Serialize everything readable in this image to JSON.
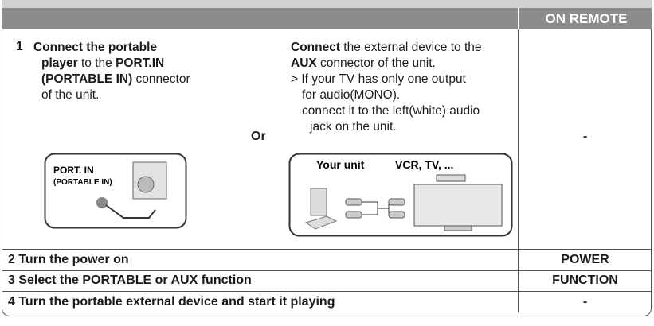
{
  "table": {
    "header": {
      "remote": "ON REMOTE"
    },
    "step1": {
      "number": "1",
      "portable_lines": [
        [
          {
            "text": "Connect the portable",
            "bold": true
          }
        ],
        [
          {
            "text": "player",
            "bold": true
          },
          {
            "text": " to the ",
            "bold": false
          },
          {
            "text": "PORT.IN",
            "bold": true
          }
        ],
        [
          {
            "text": "(PORTABLE IN)",
            "bold": true
          },
          {
            "text": " connector",
            "bold": false
          }
        ],
        [
          {
            "text": "of the unit.",
            "bold": false
          }
        ]
      ],
      "or": "Or",
      "aux_lines": [
        [
          {
            "text": "Connect",
            "bold": true
          },
          {
            "text": " the external device to the",
            "bold": false
          }
        ],
        [
          {
            "text": "AUX",
            "bold": true
          },
          {
            "text": " connector of the unit.",
            "bold": false
          }
        ],
        [
          {
            "text": "> If your TV has only one output",
            "bold": false
          }
        ],
        [
          {
            "text": "for audio(MONO).",
            "bold": false
          }
        ],
        [
          {
            "text": "connect it to the left(white) audio",
            "bold": false
          }
        ],
        [
          {
            "text": "jack on the unit.",
            "bold": false
          }
        ]
      ],
      "diagram_port": [
        "PORT. IN",
        "(PORTABLE IN)"
      ],
      "diagram_aux": [
        "Your unit",
        "VCR, TV, ..."
      ],
      "remote": "-"
    },
    "rows": [
      {
        "instruction": "2 Turn the power on",
        "remote": "POWER"
      },
      {
        "instruction": "3 Select the PORTABLE or AUX function",
        "remote": "FUNCTION"
      },
      {
        "instruction": "4 Turn the portable external device and start it playing",
        "remote": "-"
      }
    ]
  }
}
